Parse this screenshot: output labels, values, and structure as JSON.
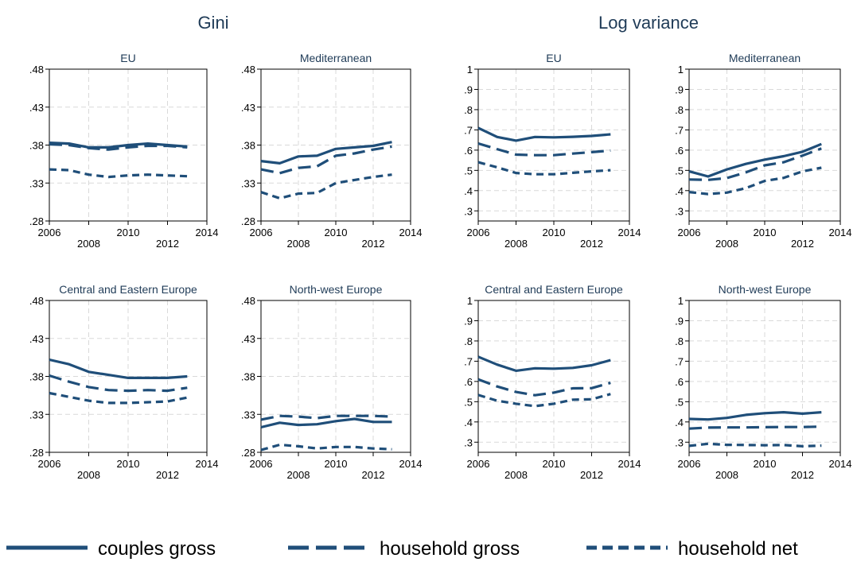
{
  "group_titles": [
    "Gini",
    "Log variance"
  ],
  "legend": {
    "items": [
      {
        "label": "couples gross",
        "style": "solid"
      },
      {
        "label": "household gross",
        "style": "longdash"
      },
      {
        "label": "household net",
        "style": "shortdash"
      }
    ]
  },
  "colors": {
    "line": "#1f4e79",
    "grid": "#d9d9d9",
    "text": "#1f3b57"
  },
  "chart_data": [
    {
      "type": "line",
      "group": "Gini",
      "title": "EU",
      "xlim": [
        2006,
        2014
      ],
      "xticks_upper": [
        "2006",
        "2010",
        "2014"
      ],
      "xticks_lower": [
        "2008",
        "2012"
      ],
      "ylim": [
        0.28,
        0.48
      ],
      "yticks": [
        ".28",
        ".33",
        ".38",
        ".43",
        ".48"
      ],
      "x": [
        2006,
        2007,
        2008,
        2009,
        2010,
        2011,
        2012,
        2013
      ],
      "series": [
        {
          "name": "couples gross",
          "values": [
            0.383,
            0.382,
            0.377,
            0.377,
            0.38,
            0.382,
            0.38,
            0.378
          ]
        },
        {
          "name": "household gross",
          "values": [
            0.381,
            0.38,
            0.376,
            0.374,
            0.377,
            0.379,
            0.379,
            0.377
          ]
        },
        {
          "name": "household net",
          "values": [
            0.348,
            0.347,
            0.341,
            0.338,
            0.34,
            0.341,
            0.34,
            0.339
          ]
        }
      ]
    },
    {
      "type": "line",
      "group": "Gini",
      "title": "Mediterranean",
      "xlim": [
        2006,
        2014
      ],
      "xticks_upper": [
        "2006",
        "2010",
        "2014"
      ],
      "xticks_lower": [
        "2008",
        "2012"
      ],
      "ylim": [
        0.28,
        0.48
      ],
      "yticks": [
        ".28",
        ".33",
        ".38",
        ".43",
        ".48"
      ],
      "x": [
        2006,
        2007,
        2008,
        2009,
        2010,
        2011,
        2012,
        2013
      ],
      "series": [
        {
          "name": "couples gross",
          "values": [
            0.359,
            0.356,
            0.365,
            0.366,
            0.375,
            0.377,
            0.379,
            0.384
          ]
        },
        {
          "name": "household gross",
          "values": [
            0.348,
            0.343,
            0.35,
            0.352,
            0.366,
            0.369,
            0.374,
            0.378
          ]
        },
        {
          "name": "household net",
          "values": [
            0.318,
            0.31,
            0.316,
            0.317,
            0.33,
            0.334,
            0.338,
            0.341
          ]
        }
      ]
    },
    {
      "type": "line",
      "group": "Log variance",
      "title": "EU",
      "xlim": [
        2006,
        2014
      ],
      "xticks_upper": [
        "2006",
        "2010",
        "2014"
      ],
      "xticks_lower": [
        "2008",
        "2012"
      ],
      "ylim": [
        0.25,
        1.0
      ],
      "yticks": [
        ".3",
        ".4",
        ".5",
        ".6",
        ".7",
        ".8",
        ".9",
        "1"
      ],
      "x": [
        2006,
        2007,
        2008,
        2009,
        2010,
        2011,
        2012,
        2013
      ],
      "series": [
        {
          "name": "couples gross",
          "values": [
            0.71,
            0.665,
            0.647,
            0.665,
            0.663,
            0.666,
            0.67,
            0.678
          ]
        },
        {
          "name": "household gross",
          "values": [
            0.633,
            0.605,
            0.578,
            0.575,
            0.575,
            0.583,
            0.59,
            0.598
          ]
        },
        {
          "name": "household net",
          "values": [
            0.54,
            0.515,
            0.487,
            0.481,
            0.481,
            0.488,
            0.495,
            0.501
          ]
        }
      ]
    },
    {
      "type": "line",
      "group": "Log variance",
      "title": "Mediterranean",
      "xlim": [
        2006,
        2014
      ],
      "xticks_upper": [
        "2006",
        "2010",
        "2014"
      ],
      "xticks_lower": [
        "2008",
        "2012"
      ],
      "ylim": [
        0.25,
        1.0
      ],
      "yticks": [
        ".3",
        ".4",
        ".5",
        ".6",
        ".7",
        ".8",
        ".9",
        "1"
      ],
      "x": [
        2006,
        2007,
        2008,
        2009,
        2010,
        2011,
        2012,
        2013
      ],
      "series": [
        {
          "name": "couples gross",
          "values": [
            0.495,
            0.47,
            0.505,
            0.532,
            0.553,
            0.57,
            0.592,
            0.63
          ]
        },
        {
          "name": "household gross",
          "values": [
            0.455,
            0.453,
            0.462,
            0.49,
            0.525,
            0.54,
            0.573,
            0.608
          ]
        },
        {
          "name": "household net",
          "values": [
            0.393,
            0.383,
            0.39,
            0.412,
            0.448,
            0.463,
            0.495,
            0.513
          ]
        }
      ]
    },
    {
      "type": "line",
      "group": "Gini",
      "title": "Central and Eastern Europe",
      "xlim": [
        2006,
        2014
      ],
      "xticks_upper": [
        "2006",
        "2010",
        "2014"
      ],
      "xticks_lower": [
        "2008",
        "2012"
      ],
      "ylim": [
        0.28,
        0.48
      ],
      "yticks": [
        ".28",
        ".33",
        ".38",
        ".43",
        ".48"
      ],
      "x": [
        2006,
        2007,
        2008,
        2009,
        2010,
        2011,
        2012,
        2013
      ],
      "series": [
        {
          "name": "couples gross",
          "values": [
            0.402,
            0.396,
            0.386,
            0.382,
            0.378,
            0.378,
            0.378,
            0.38
          ]
        },
        {
          "name": "household gross",
          "values": [
            0.381,
            0.373,
            0.366,
            0.362,
            0.361,
            0.362,
            0.361,
            0.365
          ]
        },
        {
          "name": "household net",
          "values": [
            0.358,
            0.353,
            0.348,
            0.345,
            0.345,
            0.346,
            0.347,
            0.352
          ]
        }
      ]
    },
    {
      "type": "line",
      "group": "Gini",
      "title": "North-west Europe",
      "xlim": [
        2006,
        2014
      ],
      "xticks_upper": [
        "2006",
        "2010",
        "2014"
      ],
      "xticks_lower": [
        "2008",
        "2012"
      ],
      "ylim": [
        0.28,
        0.48
      ],
      "yticks": [
        ".28",
        ".33",
        ".38",
        ".43",
        ".48"
      ],
      "x": [
        2006,
        2007,
        2008,
        2009,
        2010,
        2011,
        2012,
        2013
      ],
      "series": [
        {
          "name": "couples gross",
          "values": [
            0.313,
            0.319,
            0.316,
            0.317,
            0.321,
            0.324,
            0.32,
            0.32
          ]
        },
        {
          "name": "household gross",
          "values": [
            0.323,
            0.328,
            0.327,
            0.325,
            0.328,
            0.328,
            0.328,
            0.327
          ]
        },
        {
          "name": "household net",
          "values": [
            0.283,
            0.29,
            0.288,
            0.285,
            0.287,
            0.287,
            0.285,
            0.284
          ]
        }
      ]
    },
    {
      "type": "line",
      "group": "Log variance",
      "title": "Central and Eastern Europe",
      "xlim": [
        2006,
        2014
      ],
      "xticks_upper": [
        "2006",
        "2010",
        "2014"
      ],
      "xticks_lower": [
        "2008",
        "2012"
      ],
      "ylim": [
        0.25,
        1.0
      ],
      "yticks": [
        ".3",
        ".4",
        ".5",
        ".6",
        ".7",
        ".8",
        ".9",
        "1"
      ],
      "x": [
        2006,
        2007,
        2008,
        2009,
        2010,
        2011,
        2012,
        2013
      ],
      "series": [
        {
          "name": "couples gross",
          "values": [
            0.722,
            0.683,
            0.653,
            0.665,
            0.663,
            0.667,
            0.68,
            0.705
          ]
        },
        {
          "name": "household gross",
          "values": [
            0.61,
            0.575,
            0.548,
            0.532,
            0.545,
            0.566,
            0.567,
            0.593
          ]
        },
        {
          "name": "household net",
          "values": [
            0.533,
            0.505,
            0.49,
            0.478,
            0.49,
            0.51,
            0.512,
            0.538
          ]
        }
      ]
    },
    {
      "type": "line",
      "group": "Log variance",
      "title": "North-west Europe",
      "xlim": [
        2006,
        2014
      ],
      "xticks_upper": [
        "2006",
        "2010",
        "2014"
      ],
      "xticks_lower": [
        "2008",
        "2012"
      ],
      "ylim": [
        0.25,
        1.0
      ],
      "yticks": [
        ".3",
        ".4",
        ".5",
        ".6",
        ".7",
        ".8",
        ".9",
        "1"
      ],
      "x": [
        2006,
        2007,
        2008,
        2009,
        2010,
        2011,
        2012,
        2013
      ],
      "series": [
        {
          "name": "couples gross",
          "values": [
            0.415,
            0.412,
            0.42,
            0.435,
            0.443,
            0.448,
            0.441,
            0.448
          ]
        },
        {
          "name": "household gross",
          "values": [
            0.367,
            0.372,
            0.373,
            0.373,
            0.374,
            0.375,
            0.375,
            0.377
          ]
        },
        {
          "name": "household net",
          "values": [
            0.282,
            0.292,
            0.287,
            0.286,
            0.285,
            0.286,
            0.28,
            0.283
          ]
        }
      ]
    }
  ]
}
